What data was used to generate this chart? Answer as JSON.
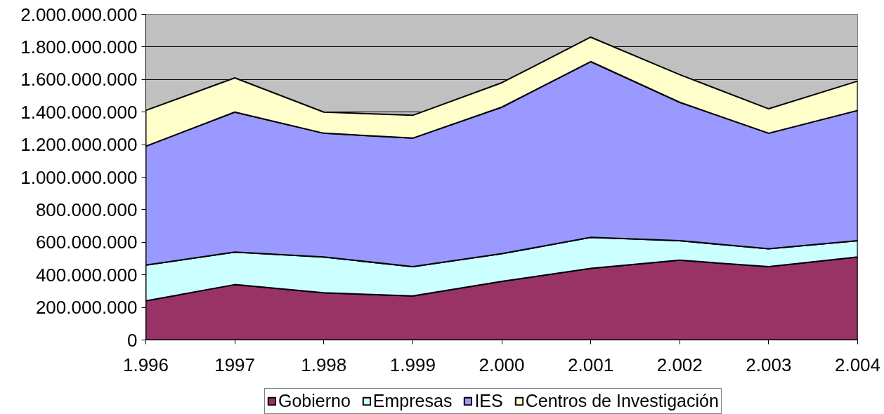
{
  "chart_data": {
    "type": "area",
    "stacked": true,
    "categories": [
      "1.996",
      "1997",
      "1.998",
      "1.999",
      "2.000",
      "2.001",
      "2.002",
      "2.003",
      "2.004"
    ],
    "series": [
      {
        "name": "Gobierno",
        "color": "#993366",
        "values": [
          240000000,
          340000000,
          290000000,
          270000000,
          360000000,
          440000000,
          490000000,
          450000000,
          510000000
        ]
      },
      {
        "name": "Empresas",
        "color": "#ccffff",
        "values": [
          220000000,
          200000000,
          220000000,
          180000000,
          170000000,
          190000000,
          120000000,
          110000000,
          100000000
        ]
      },
      {
        "name": "IES",
        "color": "#9999ff",
        "values": [
          730000000,
          860000000,
          760000000,
          790000000,
          900000000,
          1080000000,
          850000000,
          710000000,
          800000000
        ]
      },
      {
        "name": "Centros de Investigación",
        "color": "#ffffcc",
        "values": [
          220000000,
          210000000,
          130000000,
          140000000,
          150000000,
          150000000,
          170000000,
          150000000,
          180000000
        ]
      }
    ],
    "ylim": [
      0,
      2000000000
    ],
    "yticks": [
      {
        "value": 0,
        "label": "0"
      },
      {
        "value": 200000000,
        "label": "200.000.000"
      },
      {
        "value": 400000000,
        "label": "400.000.000"
      },
      {
        "value": 600000000,
        "label": "600.000.000"
      },
      {
        "value": 800000000,
        "label": "800.000.000"
      },
      {
        "value": 1000000000,
        "label": "1.000.000.000"
      },
      {
        "value": 1200000000,
        "label": "1.200.000.000"
      },
      {
        "value": 1400000000,
        "label": "1.400.000.000"
      },
      {
        "value": 1600000000,
        "label": "1.600.000.000"
      },
      {
        "value": 1800000000,
        "label": "1.800.000.000"
      },
      {
        "value": 2000000000,
        "label": "2.000.000.000"
      }
    ],
    "grid": "y",
    "legend": "bottom"
  }
}
